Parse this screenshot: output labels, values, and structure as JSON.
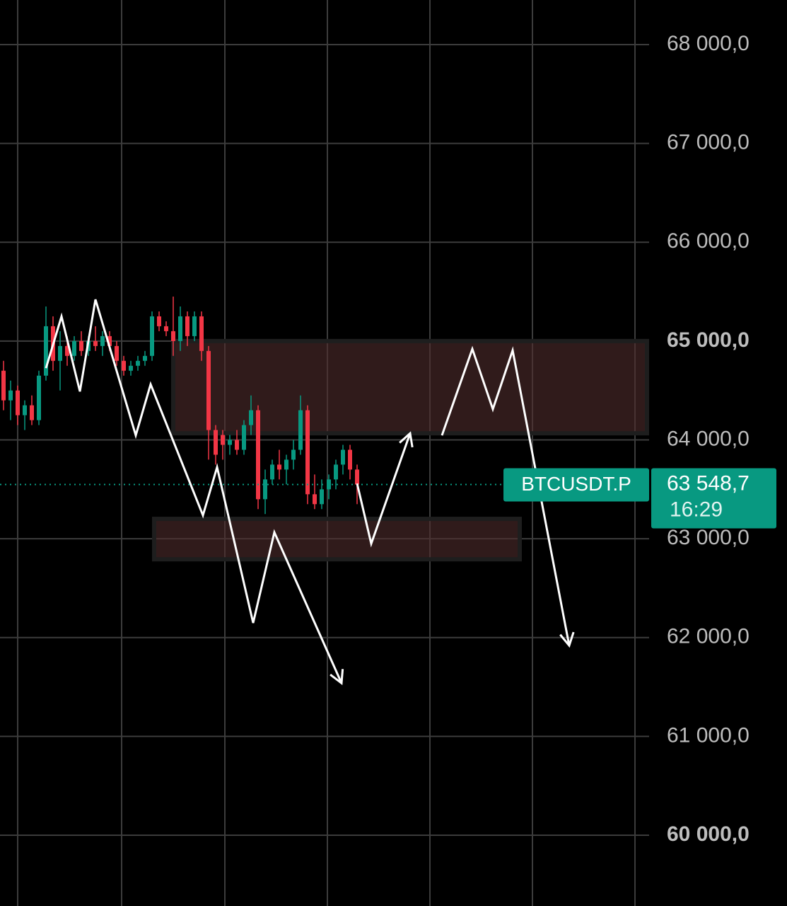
{
  "chart_data": {
    "type": "candlestick",
    "xlim": [
      -0.5,
      91.3
    ],
    "ylim": [
      59284,
      68451
    ],
    "xgrid": [
      2,
      16.7,
      31.3,
      45.8,
      60.3,
      74.8,
      89.3
    ],
    "yticks": [
      {
        "value": 68000,
        "label": "68 000,0"
      },
      {
        "value": 67000,
        "label": "67 000,0"
      },
      {
        "value": 66000,
        "label": "66 000,0"
      },
      {
        "value": 65000,
        "label": "65 000,0",
        "bold": true
      },
      {
        "value": 64000,
        "label": "64 000,0"
      },
      {
        "value": 63000,
        "label": "63 000,0"
      },
      {
        "value": 62000,
        "label": "62 000,0"
      },
      {
        "value": 61000,
        "label": "61 000,0"
      },
      {
        "value": 60000,
        "label": "60 000,0",
        "bold": true
      }
    ],
    "grid": true,
    "up_color": "#089981",
    "down_color": "#f23645",
    "x": [
      0,
      1,
      2,
      3,
      4,
      5,
      6,
      7,
      8,
      9,
      10,
      11,
      12,
      13,
      14,
      15,
      16,
      17,
      18,
      19,
      20,
      21,
      22,
      23,
      24,
      25,
      26,
      27,
      28,
      29,
      30,
      31,
      32,
      33,
      34,
      35,
      36,
      37,
      38,
      39,
      40,
      41,
      42,
      43,
      44,
      45,
      46,
      47,
      48,
      49,
      50
    ],
    "open": [
      64700,
      64400,
      64500,
      64250,
      64350,
      64200,
      64650,
      65150,
      64800,
      64950,
      64850,
      65000,
      64900,
      65000,
      64950,
      65050,
      64950,
      64800,
      64700,
      64750,
      64800,
      64850,
      65250,
      65150,
      65100,
      65000,
      65250,
      65050,
      65250,
      64900,
      64100,
      64050,
      63950,
      64000,
      63900,
      64150,
      64300,
      63400,
      63600,
      63750,
      63700,
      63800,
      63900,
      64300,
      63450,
      63350,
      63500,
      63600,
      63750,
      63900,
      63700
    ],
    "high": [
      64800,
      64600,
      64550,
      64400,
      64450,
      64700,
      65350,
      65250,
      65100,
      65050,
      65050,
      65100,
      65050,
      65150,
      65100,
      65100,
      65000,
      64850,
      64800,
      64850,
      64900,
      65300,
      65300,
      65200,
      65450,
      65350,
      65300,
      65300,
      65300,
      64950,
      64150,
      64100,
      64050,
      64100,
      64200,
      64450,
      64350,
      63700,
      63800,
      63900,
      63850,
      64000,
      64450,
      64350,
      63650,
      63600,
      63650,
      63800,
      63950,
      63950,
      63750
    ],
    "low": [
      64300,
      64200,
      64150,
      64100,
      64150,
      64150,
      64600,
      64700,
      64500,
      64750,
      64800,
      64850,
      64850,
      64900,
      64850,
      64900,
      64750,
      64650,
      64650,
      64700,
      64750,
      64800,
      65100,
      65050,
      64850,
      64900,
      64950,
      65000,
      64800,
      63800,
      63750,
      63800,
      63850,
      63850,
      63850,
      64050,
      63300,
      63250,
      63550,
      63600,
      63550,
      63700,
      63850,
      63350,
      63300,
      63300,
      63400,
      63500,
      63650,
      63600,
      63350
    ],
    "close": [
      64400,
      64500,
      64250,
      64350,
      64200,
      64650,
      65150,
      64800,
      64950,
      64850,
      65000,
      64900,
      65000,
      64950,
      65050,
      64950,
      64800,
      64700,
      64750,
      64800,
      64850,
      65250,
      65150,
      65100,
      65000,
      65250,
      65050,
      65250,
      64900,
      64100,
      63850,
      63950,
      64000,
      63900,
      64150,
      64300,
      63400,
      63600,
      63750,
      63700,
      63800,
      63900,
      64300,
      63450,
      63350,
      63500,
      63600,
      63750,
      63900,
      63700,
      63548.7
    ],
    "zones": [
      {
        "x": [
          24,
          91
        ],
        "y": [
          64067,
          65000
        ]
      },
      {
        "x": [
          21.3,
          73
        ],
        "y": [
          62792,
          63201
        ]
      }
    ],
    "drawings": [
      {
        "x": [
          6,
          8.2,
          10.8,
          13,
          18.7,
          20.8,
          28.2,
          30.2,
          35.3,
          38.3,
          47.8
        ],
        "y": [
          64726,
          65249,
          64490,
          65421,
          64046,
          64562,
          63237,
          63724,
          62148,
          63065,
          61539
        ]
      },
      {
        "x": [
          50,
          52,
          57.5
        ],
        "y": [
          63559,
          62950,
          64067
        ]
      },
      {
        "x": [
          62,
          66.3,
          69.2,
          72,
          80
        ],
        "y": [
          64046,
          64920,
          64311,
          64906,
          61919
        ]
      }
    ],
    "last_price": {
      "value": 63548.7,
      "label": "63 548,7",
      "symbol": "BTCUSDT.P",
      "countdown": "16:29"
    }
  }
}
